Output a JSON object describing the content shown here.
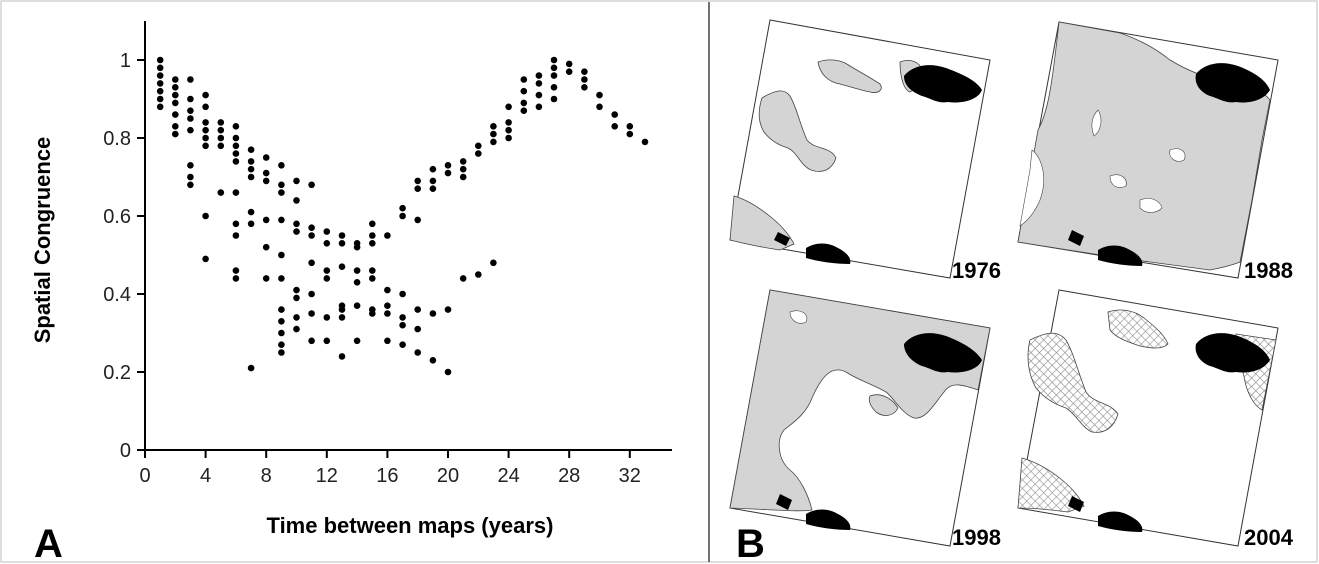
{
  "panel_a": {
    "label": "A",
    "xlabel": "Time between maps (years)",
    "ylabel": "Spatial Congruence",
    "xticks": [
      "0",
      "4",
      "8",
      "12",
      "16",
      "20",
      "24",
      "28",
      "32"
    ],
    "yticks": [
      "0",
      "0.2",
      "0.4",
      "0.6",
      "0.8",
      "1"
    ]
  },
  "panel_b": {
    "label": "B",
    "maps": [
      {
        "year": "1976"
      },
      {
        "year": "1988"
      },
      {
        "year": "1998"
      },
      {
        "year": "2004"
      }
    ],
    "colors": {
      "land": "#d4d4d4",
      "lake": "#000000",
      "hatch": "#9a9a9a"
    }
  },
  "chart_data": {
    "type": "scatter",
    "title": "",
    "xlabel": "Time between maps (years)",
    "ylabel": "Spatial Congruence",
    "xlim": [
      0,
      34
    ],
    "ylim": [
      0,
      1.1
    ],
    "xticks": [
      0,
      4,
      8,
      12,
      16,
      20,
      24,
      28,
      32
    ],
    "yticks": [
      0,
      0.2,
      0.4,
      0.6,
      0.8,
      1
    ],
    "grid": false,
    "points": [
      [
        1,
        1.0
      ],
      [
        1,
        0.98
      ],
      [
        1,
        0.96
      ],
      [
        1,
        0.94
      ],
      [
        1,
        0.92
      ],
      [
        1,
        0.9
      ],
      [
        1,
        0.88
      ],
      [
        2,
        0.95
      ],
      [
        2,
        0.93
      ],
      [
        2,
        0.91
      ],
      [
        2,
        0.89
      ],
      [
        2,
        0.86
      ],
      [
        2,
        0.83
      ],
      [
        2,
        0.81
      ],
      [
        3,
        0.95
      ],
      [
        3,
        0.9
      ],
      [
        3,
        0.87
      ],
      [
        3,
        0.85
      ],
      [
        3,
        0.82
      ],
      [
        3,
        0.73
      ],
      [
        3,
        0.7
      ],
      [
        3,
        0.68
      ],
      [
        4,
        0.91
      ],
      [
        4,
        0.88
      ],
      [
        4,
        0.84
      ],
      [
        4,
        0.82
      ],
      [
        4,
        0.8
      ],
      [
        4,
        0.78
      ],
      [
        4,
        0.6
      ],
      [
        4,
        0.49
      ],
      [
        5,
        0.84
      ],
      [
        5,
        0.82
      ],
      [
        5,
        0.8
      ],
      [
        5,
        0.78
      ],
      [
        5,
        0.66
      ],
      [
        6,
        0.83
      ],
      [
        6,
        0.8
      ],
      [
        6,
        0.78
      ],
      [
        6,
        0.76
      ],
      [
        6,
        0.74
      ],
      [
        6,
        0.66
      ],
      [
        6,
        0.58
      ],
      [
        6,
        0.55
      ],
      [
        6,
        0.46
      ],
      [
        6,
        0.44
      ],
      [
        7,
        0.77
      ],
      [
        7,
        0.74
      ],
      [
        7,
        0.72
      ],
      [
        7,
        0.7
      ],
      [
        7,
        0.61
      ],
      [
        7,
        0.58
      ],
      [
        7,
        0.21
      ],
      [
        8,
        0.75
      ],
      [
        8,
        0.71
      ],
      [
        8,
        0.69
      ],
      [
        8,
        0.59
      ],
      [
        8,
        0.52
      ],
      [
        8,
        0.44
      ],
      [
        9,
        0.73
      ],
      [
        9,
        0.68
      ],
      [
        9,
        0.66
      ],
      [
        9,
        0.59
      ],
      [
        9,
        0.5
      ],
      [
        9,
        0.44
      ],
      [
        9,
        0.36
      ],
      [
        9,
        0.33
      ],
      [
        9,
        0.3
      ],
      [
        9,
        0.27
      ],
      [
        9,
        0.25
      ],
      [
        10,
        0.69
      ],
      [
        10,
        0.64
      ],
      [
        10,
        0.58
      ],
      [
        10,
        0.56
      ],
      [
        10,
        0.41
      ],
      [
        10,
        0.39
      ],
      [
        10,
        0.34
      ],
      [
        10,
        0.31
      ],
      [
        11,
        0.68
      ],
      [
        11,
        0.57
      ],
      [
        11,
        0.55
      ],
      [
        11,
        0.48
      ],
      [
        11,
        0.4
      ],
      [
        11,
        0.35
      ],
      [
        11,
        0.28
      ],
      [
        12,
        0.56
      ],
      [
        12,
        0.53
      ],
      [
        12,
        0.46
      ],
      [
        12,
        0.44
      ],
      [
        12,
        0.34
      ],
      [
        12,
        0.28
      ],
      [
        13,
        0.55
      ],
      [
        13,
        0.53
      ],
      [
        13,
        0.47
      ],
      [
        13,
        0.37
      ],
      [
        13,
        0.36
      ],
      [
        13,
        0.34
      ],
      [
        13,
        0.24
      ],
      [
        14,
        0.53
      ],
      [
        14,
        0.52
      ],
      [
        14,
        0.46
      ],
      [
        14,
        0.43
      ],
      [
        14,
        0.37
      ],
      [
        14,
        0.28
      ],
      [
        15,
        0.58
      ],
      [
        15,
        0.55
      ],
      [
        15,
        0.53
      ],
      [
        15,
        0.46
      ],
      [
        15,
        0.44
      ],
      [
        15,
        0.36
      ],
      [
        15,
        0.35
      ],
      [
        16,
        0.55
      ],
      [
        16,
        0.41
      ],
      [
        16,
        0.37
      ],
      [
        16,
        0.35
      ],
      [
        16,
        0.28
      ],
      [
        17,
        0.62
      ],
      [
        17,
        0.6
      ],
      [
        17,
        0.4
      ],
      [
        17,
        0.34
      ],
      [
        17,
        0.32
      ],
      [
        17,
        0.27
      ],
      [
        18,
        0.69
      ],
      [
        18,
        0.67
      ],
      [
        18,
        0.59
      ],
      [
        18,
        0.36
      ],
      [
        18,
        0.31
      ],
      [
        18,
        0.25
      ],
      [
        19,
        0.72
      ],
      [
        19,
        0.69
      ],
      [
        19,
        0.67
      ],
      [
        19,
        0.35
      ],
      [
        19,
        0.23
      ],
      [
        20,
        0.73
      ],
      [
        20,
        0.71
      ],
      [
        20,
        0.36
      ],
      [
        20,
        0.2
      ],
      [
        21,
        0.74
      ],
      [
        21,
        0.72
      ],
      [
        21,
        0.7
      ],
      [
        21,
        0.44
      ],
      [
        22,
        0.78
      ],
      [
        22,
        0.76
      ],
      [
        22,
        0.45
      ],
      [
        23,
        0.83
      ],
      [
        23,
        0.81
      ],
      [
        23,
        0.79
      ],
      [
        23,
        0.48
      ],
      [
        24,
        0.88
      ],
      [
        24,
        0.84
      ],
      [
        24,
        0.82
      ],
      [
        24,
        0.8
      ],
      [
        25,
        0.95
      ],
      [
        25,
        0.92
      ],
      [
        25,
        0.89
      ],
      [
        25,
        0.87
      ],
      [
        26,
        0.96
      ],
      [
        26,
        0.94
      ],
      [
        26,
        0.91
      ],
      [
        26,
        0.88
      ],
      [
        27,
        1.0
      ],
      [
        27,
        0.98
      ],
      [
        27,
        0.96
      ],
      [
        27,
        0.93
      ],
      [
        27,
        0.9
      ],
      [
        28,
        0.99
      ],
      [
        28,
        0.97
      ],
      [
        29,
        0.97
      ],
      [
        29,
        0.95
      ],
      [
        29,
        0.93
      ],
      [
        30,
        0.91
      ],
      [
        30,
        0.88
      ],
      [
        31,
        0.86
      ],
      [
        31,
        0.83
      ],
      [
        32,
        0.83
      ],
      [
        32,
        0.81
      ],
      [
        33,
        0.79
      ]
    ]
  }
}
